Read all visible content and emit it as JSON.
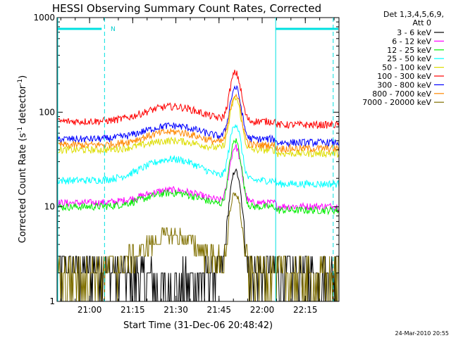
{
  "chart_data": {
    "type": "line",
    "title": "HESSI Observing Summary Count Rates, Corrected",
    "xlabel": "Start Time (31-Dec-06 20:48:42)",
    "ylabel": "Corrected Count Rate (s",
    "ylabel_sup1": "-1",
    "ylabel_mid": " detector",
    "ylabel_sup2": "-1",
    "ylabel_end": ")",
    "yscale": "log",
    "ylim": [
      1,
      1000
    ],
    "xlim_minutes": [
      0,
      98
    ],
    "x_tick_labels": [
      "21:00",
      "21:15",
      "21:30",
      "21:45",
      "22:00",
      "22:15"
    ],
    "x_tick_minutes": [
      11.3,
      26.3,
      41.3,
      56.3,
      71.3,
      86.3
    ],
    "y_tick_labels": [
      "1",
      "10",
      "100",
      "1000"
    ],
    "y_tick_values": [
      1,
      10,
      100,
      1000
    ],
    "legend_header": [
      "Det 1,3,4,5,6,9,",
      "Att 0"
    ],
    "legend_placement": "right",
    "footer_date": "24-Mar-2010 20:55",
    "night_marker": "N",
    "series": [
      {
        "name": "3 - 6 keV",
        "color": "#000000",
        "base": 2.2,
        "bump": 1.4,
        "flare": 22
      },
      {
        "name": "6 - 12 keV",
        "color": "#ff00ff",
        "base": 11,
        "bump": 15,
        "flare": 32
      },
      {
        "name": "12 - 25 keV",
        "color": "#00ee00",
        "base": 10,
        "bump": 14,
        "flare": 40
      },
      {
        "name": "25 - 50 keV",
        "color": "#00ffff",
        "base": 19,
        "bump": 32,
        "flare": 56
      },
      {
        "name": "50 - 100 keV",
        "color": "#dddd00",
        "base": 40,
        "bump": 50,
        "flare": 100
      },
      {
        "name": "100 - 300 keV",
        "color": "#ff0000",
        "base": 80,
        "bump": 115,
        "flare": 180
      },
      {
        "name": "300 - 800 keV",
        "color": "#0000ff",
        "base": 52,
        "bump": 72,
        "flare": 130
      },
      {
        "name": "800 - 7000 keV",
        "color": "#ff8800",
        "base": 45,
        "bump": 62,
        "flare": 110
      },
      {
        "name": "7000 - 20000 keV",
        "color": "#807000",
        "base": 2.0,
        "bump": 5,
        "flare": 12
      }
    ]
  }
}
